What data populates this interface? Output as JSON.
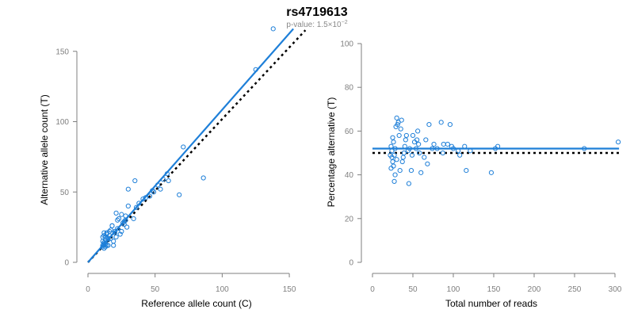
{
  "header": {
    "title": "rs4719613",
    "subtitle_prefix": "p-value: 1.5×10",
    "subtitle_exp": "−2"
  },
  "colors": {
    "points": "#1e7fd8",
    "fit": "#1e7fd8",
    "reference": "#000000"
  },
  "chart_data": [
    {
      "type": "scatter",
      "xlabel": "Reference allele count (C)",
      "ylabel": "Alternative allele count (T)",
      "xlim": [
        0,
        160
      ],
      "ylim": [
        0,
        160
      ],
      "xticks": [
        0,
        50,
        100,
        150
      ],
      "yticks": [
        0,
        50,
        100,
        150
      ],
      "x_tick_labels": [
        "0",
        "50",
        "100",
        "150"
      ],
      "y_tick_labels": [
        "0",
        "50",
        "100",
        "150"
      ],
      "grid": false,
      "fit_line": {
        "x": [
          0,
          153
        ],
        "y": [
          0,
          166
        ]
      },
      "reference_line": {
        "x": [
          0,
          162
        ],
        "y": [
          0,
          165
        ],
        "style": "dotted"
      },
      "x": [
        138,
        125,
        71,
        86,
        68,
        60,
        59,
        54,
        56,
        52,
        46,
        48,
        49,
        43,
        41,
        38,
        36,
        35,
        34,
        30,
        29,
        28,
        30,
        27,
        26,
        28,
        25,
        24,
        22,
        21,
        22,
        20,
        19,
        18,
        20,
        17,
        16,
        19,
        14,
        15,
        13,
        12,
        11,
        12,
        13,
        11,
        12,
        14,
        15,
        13,
        12,
        11,
        12,
        13,
        14,
        16,
        15,
        17,
        18,
        21,
        23,
        25,
        27,
        12,
        11
      ],
      "y": [
        166,
        137,
        82,
        60,
        48,
        58,
        63,
        52,
        59,
        55,
        47,
        51,
        50,
        46,
        45,
        42,
        39,
        58,
        31,
        52,
        25,
        30,
        40,
        29,
        28,
        33,
        34,
        20,
        24,
        18,
        30,
        21,
        15,
        26,
        22,
        23,
        19,
        12,
        20,
        16,
        18,
        14,
        11,
        13,
        16,
        12,
        14,
        12,
        17,
        11,
        10,
        15,
        19,
        13,
        21,
        22,
        12,
        17,
        26,
        35,
        31,
        22,
        27,
        21,
        18
      ]
    },
    {
      "type": "scatter",
      "xlabel": "Total number of reads",
      "ylabel": "Percentage alternative (T)",
      "xlim": [
        0,
        300
      ],
      "ylim": [
        0,
        100
      ],
      "xticks": [
        0,
        50,
        100,
        150,
        200,
        250,
        300
      ],
      "yticks": [
        0,
        20,
        40,
        60,
        80,
        100
      ],
      "x_tick_labels": [
        "0",
        "50",
        "100",
        "150",
        "200",
        "250",
        "300"
      ],
      "y_tick_labels": [
        "0",
        "20",
        "40",
        "60",
        "80",
        "100"
      ],
      "grid": false,
      "fit_line": {
        "x": [
          0,
          305
        ],
        "y": [
          52,
          52
        ]
      },
      "reference_line": {
        "x": [
          0,
          305
        ],
        "y": [
          50,
          50
        ],
        "style": "dotted"
      },
      "x": [
        304,
        262,
        155,
        147,
        152,
        121,
        116,
        114,
        108,
        106,
        100,
        98,
        96,
        93,
        88,
        87,
        85,
        80,
        76,
        74,
        70,
        68,
        66,
        64,
        60,
        58,
        57,
        56,
        55,
        54,
        52,
        50,
        49,
        48,
        46,
        45,
        44,
        42,
        41,
        40,
        39,
        38,
        37,
        36,
        35,
        34,
        33,
        32,
        31,
        30,
        30,
        29,
        28,
        28,
        27,
        27,
        26,
        26,
        25,
        25,
        24,
        24,
        23,
        23,
        22
      ],
      "y": [
        55,
        52,
        53,
        41,
        52,
        51,
        42,
        53,
        49,
        51,
        52,
        53,
        63,
        54,
        54,
        50,
        64,
        52,
        54,
        52,
        63,
        45,
        56,
        48,
        41,
        50,
        54,
        60,
        56,
        52,
        55,
        58,
        49,
        42,
        52,
        36,
        51,
        58,
        56,
        53,
        50,
        48,
        46,
        65,
        61,
        42,
        58,
        64,
        63,
        66,
        47,
        62,
        52,
        40,
        49,
        37,
        55,
        44,
        57,
        46,
        51,
        48,
        53,
        43,
        49
      ]
    }
  ]
}
